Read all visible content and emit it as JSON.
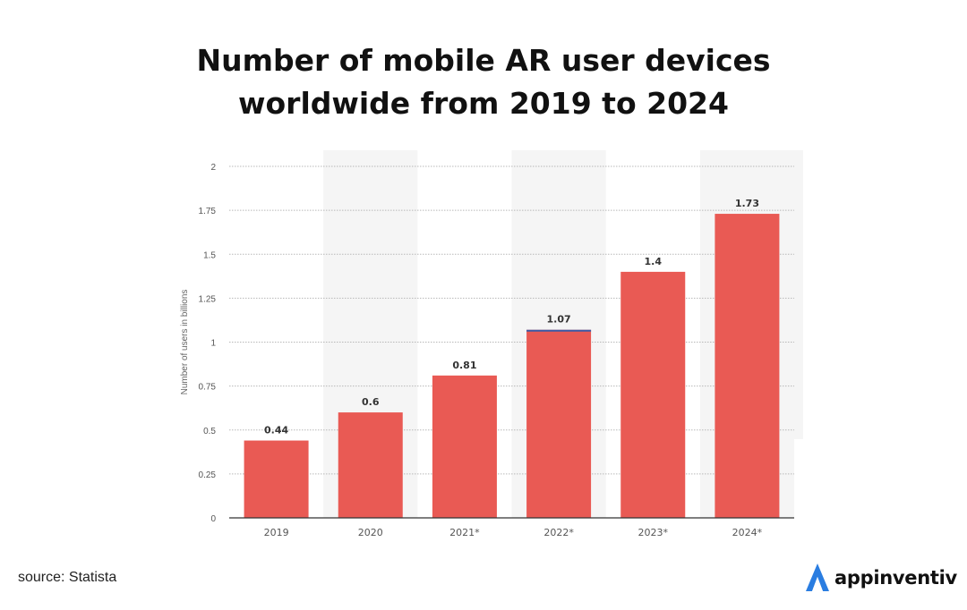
{
  "title": {
    "line1": "Number of mobile AR user devices",
    "line2": "worldwide from 2019 to 2024"
  },
  "source": "source: Statista",
  "brand": {
    "name": "appinventiv",
    "icon": "appinventiv-logo-icon",
    "accent": "#2a7de1"
  },
  "colors": {
    "bar": "#e95a54",
    "bar_top_accent": "#3b5aa6",
    "grid": "#b8b8b8",
    "band": "#f5f5f5",
    "axis": "#333333",
    "tick_text": "#555555",
    "value_text": "#333333"
  },
  "chart_data": {
    "type": "bar",
    "categories": [
      "2019",
      "2020",
      "2021*",
      "2022*",
      "2023*",
      "2024*"
    ],
    "values": [
      0.44,
      0.6,
      0.81,
      1.07,
      1.4,
      1.73
    ],
    "value_labels": [
      "0.44",
      "0.6",
      "0.81",
      "1.07",
      "1.4",
      "1.73"
    ],
    "ylabel": "Number of users in billions",
    "xlabel": "",
    "ylim": [
      0,
      2
    ],
    "yticks": [
      0,
      0.25,
      0.5,
      0.75,
      1,
      1.25,
      1.5,
      1.75,
      2
    ],
    "ytick_labels": [
      "0",
      "0.25",
      "0.5",
      "0.75",
      "1",
      "1.25",
      "1.5",
      "1.75",
      "2"
    ],
    "grid": true
  }
}
